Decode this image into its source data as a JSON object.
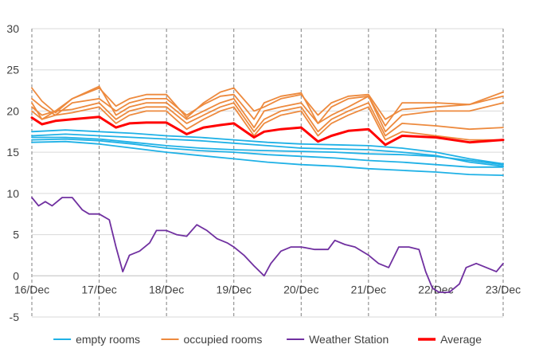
{
  "chart_data": {
    "type": "line",
    "title": "",
    "xlabel": "",
    "ylabel": "",
    "ylim": [
      -5,
      30
    ],
    "yticks": [
      -5,
      0,
      5,
      10,
      15,
      20,
      25,
      30
    ],
    "x_tick_labels": [
      "16/Dec",
      "17/Dec",
      "18/Dec",
      "19/Dec",
      "20/Dec",
      "21/Dec",
      "22/Dec",
      "23/Dec"
    ],
    "xlim_days": [
      16,
      23
    ],
    "grid": "dashed vertical at day boundaries, solid horizontal",
    "legend_position": "bottom",
    "legend": [
      {
        "label": "empty rooms",
        "color": "#1fb1e6"
      },
      {
        "label": "occupied rooms",
        "color": "#ed8a3e"
      },
      {
        "label": "Weather Station",
        "color": "#7030a0"
      },
      {
        "label": "Average",
        "color": "#ff0000"
      }
    ],
    "series": [
      {
        "group": "empty rooms",
        "color": "#1fb1e6",
        "x": [
          16,
          16.5,
          17,
          17.5,
          18,
          18.5,
          19,
          19.5,
          20,
          20.5,
          21,
          21.5,
          22,
          22.5,
          23
        ],
        "y": [
          17.5,
          17.7,
          17.5,
          17.3,
          17.0,
          16.8,
          16.5,
          16.2,
          16.0,
          15.9,
          15.8,
          15.5,
          15.0,
          14.2,
          13.6
        ]
      },
      {
        "group": "empty rooms",
        "color": "#1fb1e6",
        "x": [
          16,
          16.5,
          17,
          17.5,
          18,
          18.5,
          19,
          19.5,
          20,
          20.5,
          21,
          21.5,
          22,
          22.5,
          23
        ],
        "y": [
          17.0,
          17.2,
          17.0,
          16.8,
          16.6,
          16.4,
          16.1,
          15.8,
          15.5,
          15.4,
          15.3,
          15.0,
          14.6,
          13.8,
          13.3
        ]
      },
      {
        "group": "empty rooms",
        "color": "#1fb1e6",
        "x": [
          16,
          16.5,
          17,
          17.5,
          18,
          18.5,
          19,
          19.5,
          20,
          20.5,
          21,
          21.5,
          22,
          22.5,
          23
        ],
        "y": [
          16.8,
          16.8,
          16.6,
          16.2,
          15.8,
          15.5,
          15.3,
          15.2,
          15.1,
          15.0,
          14.8,
          14.7,
          14.5,
          14.0,
          13.5
        ]
      },
      {
        "group": "empty rooms",
        "color": "#1fb1e6",
        "x": [
          16,
          16.5,
          17,
          17.5,
          18,
          18.5,
          19,
          19.5,
          20,
          20.5,
          21,
          21.5,
          22,
          22.5,
          23
        ],
        "y": [
          16.5,
          16.6,
          16.4,
          16.0,
          15.5,
          15.2,
          15.0,
          14.7,
          14.5,
          14.3,
          14.0,
          13.8,
          13.5,
          13.2,
          13.2
        ]
      },
      {
        "group": "empty rooms",
        "color": "#1fb1e6",
        "x": [
          16,
          16.5,
          17,
          17.5,
          18,
          18.5,
          19,
          19.5,
          20,
          20.5,
          21,
          21.5,
          22,
          22.5,
          23
        ],
        "y": [
          16.2,
          16.3,
          16.0,
          15.5,
          15.0,
          14.6,
          14.2,
          13.8,
          13.5,
          13.3,
          13.0,
          12.8,
          12.6,
          12.3,
          12.2
        ]
      },
      {
        "group": "occupied rooms",
        "color": "#ed8a3e",
        "x": [
          16,
          16.15,
          16.35,
          16.6,
          17,
          17.25,
          17.45,
          17.7,
          18,
          18.3,
          18.55,
          18.8,
          19,
          19.3,
          19.45,
          19.7,
          20,
          20.25,
          20.45,
          20.7,
          21,
          21.25,
          21.5,
          22,
          22.5,
          23
        ],
        "y": [
          22.8,
          21.2,
          19.8,
          21.5,
          22.8,
          20.6,
          21.5,
          22.0,
          22.0,
          19.2,
          21.0,
          22.3,
          22.8,
          20.0,
          20.5,
          21.5,
          22.0,
          19.5,
          21.0,
          21.8,
          22.0,
          19.0,
          20.2,
          20.5,
          20.8,
          22.3
        ]
      },
      {
        "group": "occupied rooms",
        "color": "#ed8a3e",
        "x": [
          16,
          16.15,
          16.35,
          16.6,
          17,
          17.25,
          17.45,
          17.7,
          18,
          18.3,
          18.55,
          18.8,
          19,
          19.3,
          19.45,
          19.7,
          20,
          20.25,
          20.45,
          20.7,
          21,
          21.25,
          21.5,
          22,
          22.5,
          23
        ],
        "y": [
          21.5,
          20.5,
          19.5,
          21.0,
          21.5,
          20.0,
          21.0,
          21.5,
          21.5,
          19.5,
          20.8,
          21.8,
          22.0,
          19.0,
          21.0,
          21.8,
          22.2,
          18.5,
          20.5,
          21.5,
          21.8,
          18.2,
          21.0,
          21.0,
          20.8,
          21.8
        ]
      },
      {
        "group": "occupied rooms",
        "color": "#ed8a3e",
        "x": [
          16,
          16.15,
          16.35,
          16.6,
          17,
          17.25,
          17.45,
          17.7,
          18,
          18.3,
          18.55,
          18.8,
          19,
          19.3,
          19.45,
          19.7,
          20,
          20.25,
          20.45,
          20.7,
          21,
          21.25,
          21.5,
          22,
          22.5,
          23
        ],
        "y": [
          21.0,
          19.0,
          20.0,
          21.5,
          23.0,
          19.5,
          20.5,
          21.0,
          21.0,
          19.0,
          20.0,
          21.0,
          21.5,
          18.0,
          20.0,
          20.5,
          21.0,
          18.5,
          19.5,
          20.5,
          21.8,
          17.5,
          19.5,
          20.0,
          20.0,
          21.0
        ]
      },
      {
        "group": "occupied rooms",
        "color": "#ed8a3e",
        "x": [
          16,
          16.15,
          16.35,
          16.6,
          17,
          17.25,
          17.45,
          17.7,
          18,
          18.3,
          18.55,
          18.8,
          19,
          19.3,
          19.45,
          19.7,
          20,
          20.25,
          20.45,
          20.7,
          21,
          21.25,
          21.5,
          22,
          22.5,
          23
        ],
        "y": [
          20.5,
          19.5,
          20.0,
          20.2,
          21.0,
          19.0,
          20.0,
          20.5,
          20.5,
          18.5,
          19.5,
          20.5,
          21.0,
          17.5,
          19.0,
          20.0,
          20.5,
          17.5,
          19.0,
          20.0,
          21.0,
          17.0,
          18.5,
          18.2,
          17.8,
          18.0
        ]
      },
      {
        "group": "occupied rooms",
        "color": "#ed8a3e",
        "x": [
          16,
          16.15,
          16.35,
          16.6,
          17,
          17.25,
          17.45,
          17.7,
          18,
          18.3,
          18.55,
          18.8,
          19,
          19.3,
          19.45,
          19.7,
          20,
          20.25,
          20.45,
          20.7,
          21,
          21.25,
          21.5,
          22,
          22.5,
          23
        ],
        "y": [
          20.0,
          19.0,
          19.5,
          19.8,
          20.5,
          18.5,
          19.5,
          20.0,
          20.0,
          17.8,
          19.0,
          20.0,
          20.5,
          17.0,
          18.5,
          19.5,
          20.0,
          17.0,
          18.5,
          19.5,
          20.5,
          16.5,
          17.5,
          17.0,
          16.5,
          16.5
        ]
      },
      {
        "group": "Weather Station",
        "color": "#7030a0",
        "x": [
          16,
          16.1,
          16.2,
          16.3,
          16.45,
          16.6,
          16.75,
          16.85,
          17,
          17.15,
          17.25,
          17.35,
          17.45,
          17.6,
          17.75,
          17.85,
          18,
          18.15,
          18.3,
          18.45,
          18.6,
          18.75,
          18.9,
          19,
          19.15,
          19.3,
          19.45,
          19.55,
          19.7,
          19.85,
          20,
          20.2,
          20.4,
          20.5,
          20.65,
          20.8,
          21,
          21.15,
          21.3,
          21.45,
          21.6,
          21.75,
          21.85,
          21.95,
          22.05,
          22.2,
          22.35,
          22.45,
          22.6,
          22.75,
          22.9,
          23
        ],
        "y": [
          9.5,
          8.5,
          9.0,
          8.5,
          9.5,
          9.5,
          8.0,
          7.5,
          7.5,
          6.8,
          3.5,
          0.5,
          2.5,
          3.0,
          4.0,
          5.5,
          5.5,
          5.0,
          4.8,
          6.2,
          5.5,
          4.5,
          4.0,
          3.5,
          2.5,
          1.2,
          0.0,
          1.5,
          3.0,
          3.5,
          3.5,
          3.2,
          3.2,
          4.3,
          3.8,
          3.5,
          2.5,
          1.5,
          1.0,
          3.5,
          3.5,
          3.2,
          0.5,
          -1.5,
          -2.0,
          -2.0,
          -1.0,
          1.0,
          1.5,
          1.0,
          0.5,
          1.5
        ]
      },
      {
        "group": "Average",
        "color": "#ff0000",
        "x": [
          16,
          16.15,
          16.35,
          16.6,
          17,
          17.25,
          17.45,
          17.7,
          18,
          18.3,
          18.55,
          18.8,
          19,
          19.3,
          19.45,
          19.7,
          20,
          20.25,
          20.45,
          20.7,
          21,
          21.25,
          21.5,
          22,
          22.5,
          23
        ],
        "y": [
          19.2,
          18.4,
          18.8,
          19.0,
          19.3,
          18.0,
          18.5,
          18.6,
          18.6,
          17.2,
          18.0,
          18.3,
          18.5,
          16.8,
          17.5,
          17.8,
          18.0,
          16.3,
          17.0,
          17.6,
          17.8,
          15.9,
          17.0,
          16.8,
          16.2,
          16.5
        ]
      }
    ]
  }
}
